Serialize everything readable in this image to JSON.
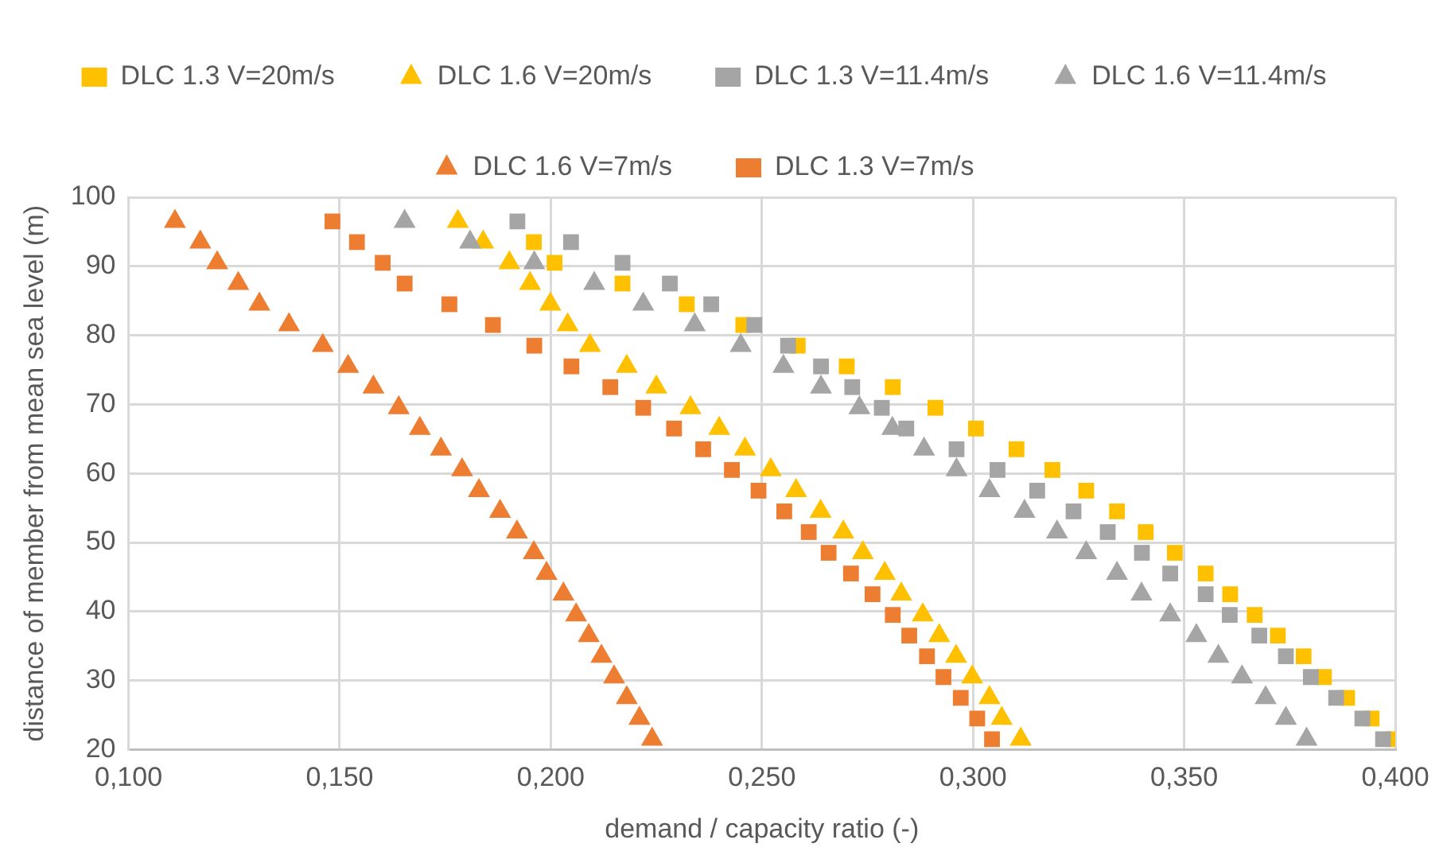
{
  "chart_data": {
    "type": "scatter",
    "xlabel": "demand / capacity ratio (-)",
    "ylabel": "distance of member from mean sea level (m)",
    "xlim": [
      0.1,
      0.4
    ],
    "xticks": [
      {
        "value": 0.1,
        "label": "0,100"
      },
      {
        "value": 0.15,
        "label": "0,150"
      },
      {
        "value": 0.2,
        "label": "0,200"
      },
      {
        "value": 0.25,
        "label": "0,250"
      },
      {
        "value": 0.3,
        "label": "0,300"
      },
      {
        "value": 0.35,
        "label": "0,350"
      },
      {
        "value": 0.4,
        "label": "0,400"
      }
    ],
    "ylim": [
      20,
      100
    ],
    "yticks": [
      20,
      30,
      40,
      50,
      60,
      70,
      80,
      90,
      100
    ],
    "grid": true,
    "legend": "top",
    "series": [
      {
        "name": "DLC 1.3 V=20m/s",
        "color": "#ffc000",
        "marker": "square",
        "x": [
          null,
          0.196,
          0.2009,
          0.217,
          0.2322,
          0.2456,
          0.2585,
          0.2701,
          0.281,
          0.2911,
          0.3007,
          0.3103,
          0.3188,
          0.3268,
          0.3341,
          0.3409,
          0.3478,
          0.3551,
          0.3609,
          0.3667,
          0.3722,
          0.3783,
          0.3831,
          0.3886,
          0.3944,
          0.3996
        ],
        "values": [
          null,
          93.5,
          90.5,
          87.5,
          84.5,
          81.5,
          78.5,
          75.5,
          72.5,
          69.5,
          66.5,
          63.5,
          60.5,
          57.5,
          54.5,
          51.5,
          48.5,
          45.5,
          42.5,
          39.5,
          36.5,
          33.5,
          30.5,
          27.5,
          24.5,
          21.5
        ]
      },
      {
        "name": "DLC 1.6 V=20m/s",
        "color": "#ffc000",
        "marker": "triangle",
        "x": [
          0.178,
          0.184,
          0.1902,
          0.1951,
          0.1999,
          0.204,
          0.2093,
          0.218,
          0.225,
          0.2331,
          0.2399,
          0.246,
          0.2521,
          0.2581,
          0.2639,
          0.2693,
          0.2739,
          0.2791,
          0.283,
          0.2881,
          0.292,
          0.296,
          0.2998,
          0.3039,
          0.3068,
          0.3113
        ],
        "values": [
          96.5,
          93.5,
          90.5,
          87.5,
          84.5,
          81.5,
          78.5,
          75.5,
          72.5,
          69.5,
          66.5,
          63.5,
          60.5,
          57.5,
          54.5,
          51.5,
          48.5,
          45.5,
          42.5,
          39.5,
          36.5,
          33.5,
          30.5,
          27.5,
          24.5,
          21.5
        ]
      },
      {
        "name": "DLC 1.3 V=11.4m/s",
        "color": "#a5a5a5",
        "marker": "square",
        "x": [
          0.1921,
          0.2048,
          0.217,
          0.2282,
          0.238,
          0.2482,
          0.2562,
          0.264,
          0.2714,
          0.2784,
          0.2842,
          0.2961,
          0.3058,
          0.3152,
          0.3238,
          0.3319,
          0.34,
          0.3467,
          0.3551,
          0.3608,
          0.3678,
          0.3741,
          0.38,
          0.386,
          0.3922,
          0.3971
        ],
        "values": [
          96.5,
          93.5,
          90.5,
          87.5,
          84.5,
          81.5,
          78.5,
          75.5,
          72.5,
          69.5,
          66.5,
          63.5,
          60.5,
          57.5,
          54.5,
          51.5,
          48.5,
          45.5,
          42.5,
          39.5,
          36.5,
          33.5,
          30.5,
          27.5,
          24.5,
          21.5
        ]
      },
      {
        "name": "DLC 1.6 V=11.4m/s",
        "color": "#a5a5a5",
        "marker": "triangle",
        "x": [
          0.1654,
          0.1809,
          0.1961,
          0.2103,
          0.2219,
          0.2341,
          0.245,
          0.2551,
          0.264,
          0.2731,
          0.2809,
          0.2884,
          0.2961,
          0.3039,
          0.3122,
          0.3199,
          0.3268,
          0.3341,
          0.3399,
          0.3467,
          0.3529,
          0.3581,
          0.3637,
          0.3693,
          0.3741,
          0.379
        ],
        "values": [
          96.5,
          93.5,
          90.5,
          87.5,
          84.5,
          81.5,
          78.5,
          75.5,
          72.5,
          69.5,
          66.5,
          63.5,
          60.5,
          57.5,
          54.5,
          51.5,
          48.5,
          45.5,
          42.5,
          39.5,
          36.5,
          33.5,
          30.5,
          27.5,
          24.5,
          21.5
        ]
      },
      {
        "name": "DLC 1.6 V=7m/s",
        "color": "#ed7d31",
        "marker": "triangle",
        "x": [
          0.111,
          0.117,
          0.121,
          0.126,
          0.131,
          0.138,
          0.146,
          0.152,
          0.158,
          0.164,
          0.169,
          0.174,
          0.179,
          0.183,
          0.188,
          0.192,
          0.196,
          0.199,
          0.203,
          0.206,
          0.209,
          0.212,
          0.215,
          0.218,
          0.221,
          0.224
        ],
        "values": [
          96.5,
          93.5,
          90.5,
          87.5,
          84.5,
          81.5,
          78.5,
          75.5,
          72.5,
          69.5,
          66.5,
          63.5,
          60.5,
          57.5,
          54.5,
          51.5,
          48.5,
          45.5,
          42.5,
          39.5,
          36.5,
          33.5,
          30.5,
          27.5,
          24.5,
          21.5
        ]
      },
      {
        "name": "DLC 1.3 V=7m/s",
        "color": "#ed7d31",
        "marker": "square",
        "x": [
          0.1483,
          0.1541,
          0.1602,
          0.1654,
          0.176,
          0.1863,
          0.1961,
          0.2049,
          0.2141,
          0.2219,
          0.2292,
          0.2361,
          0.2429,
          0.2492,
          0.2553,
          0.2611,
          0.2658,
          0.2711,
          0.2762,
          0.281,
          0.2849,
          0.2891,
          0.293,
          0.2971,
          0.301,
          0.3045
        ],
        "values": [
          96.5,
          93.5,
          90.5,
          87.5,
          84.5,
          81.5,
          78.5,
          75.5,
          72.5,
          69.5,
          66.5,
          63.5,
          60.5,
          57.5,
          54.5,
          51.5,
          48.5,
          45.5,
          42.5,
          39.5,
          36.5,
          33.5,
          30.5,
          27.5,
          24.5,
          21.5
        ]
      }
    ]
  }
}
